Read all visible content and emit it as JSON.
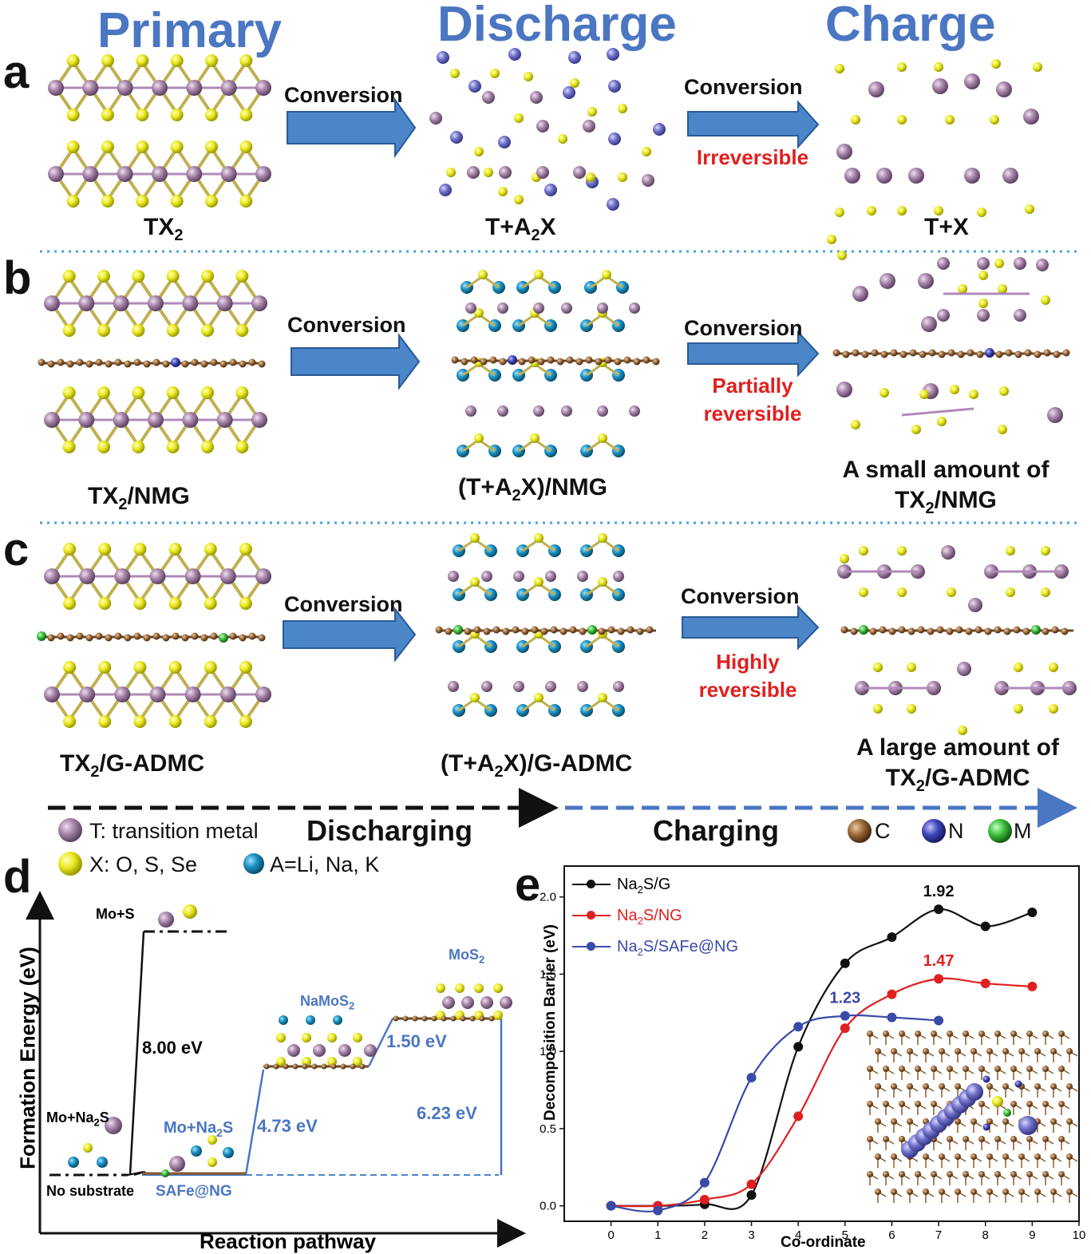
{
  "headers": {
    "primary": "Primary",
    "discharge": "Discharge",
    "charge": "Charge"
  },
  "panels": {
    "a": {
      "letter": "a",
      "conversion1": "Conversion",
      "conversion2": "Conversion",
      "reversibility": "Irreversible",
      "cap_primary": "TX",
      "cap_primary_sub": "2",
      "cap_discharge_a": "T+A",
      "cap_discharge_sub": "2",
      "cap_discharge_b": "X",
      "cap_charge": "T+X"
    },
    "b": {
      "letter": "b",
      "conversion1": "Conversion",
      "conversion2": "Conversion",
      "reversibility_1": "Partially",
      "reversibility_2": "reversible",
      "cap_primary_a": "TX",
      "cap_primary_sub": "2",
      "cap_primary_b": "/NMG",
      "cap_discharge_a": "(T+A",
      "cap_discharge_sub": "2",
      "cap_discharge_b": "X)/NMG",
      "cap_charge_1": "A small amount of",
      "cap_charge_2a": "TX",
      "cap_charge_2sub": "2",
      "cap_charge_2b": "/NMG"
    },
    "c": {
      "letter": "c",
      "conversion1": "Conversion",
      "conversion2": "Conversion",
      "reversibility_1": "Highly",
      "reversibility_2": "reversible",
      "cap_primary_a": "TX",
      "cap_primary_sub": "2",
      "cap_primary_b": "/G-ADMC",
      "cap_discharge_a": "(T+A",
      "cap_discharge_sub": "2",
      "cap_discharge_b": "X)/G-ADMC",
      "cap_charge_1": "A large amount of",
      "cap_charge_2a": "TX",
      "cap_charge_2sub": "2",
      "cap_charge_2b": "/G-ADMC"
    }
  },
  "process": {
    "discharging": "Discharging",
    "charging": "Charging"
  },
  "legend": {
    "t": "T: transition metal",
    "x": "X: O, S, Se",
    "a": "A=Li, Na, K",
    "c": "C",
    "n": "N",
    "m": "M"
  },
  "colors": {
    "T": "#9a7aa0",
    "X": "#e8e020",
    "A": "#1a90c0",
    "C": "#8a5a2a",
    "N": "#4048b8",
    "M": "#40c040",
    "blue": "#4a76c2",
    "red": "#e02020"
  },
  "panel_d": {
    "letter": "d",
    "ylabel": "Formation Energy (eV)",
    "xlabel": "Reaction pathway",
    "label_mos_top": "Mo+S",
    "label_mona2s_left": "Mo+Na",
    "label_mona2s_left_sub": "2",
    "label_mona2s_left_end": "S",
    "label_nosub": "No substrate",
    "energy_8": "8.00 eV",
    "label_mona2s_right": "Mo+Na",
    "label_mona2s_right_sub": "2",
    "label_mona2s_right_end": "S",
    "label_safe": "SAFe@NG",
    "energy_473": "4.73 eV",
    "label_namos2": "NaMoS",
    "label_namos2_sub": "2",
    "energy_150": "1.50 eV",
    "label_mos2": "MoS",
    "label_mos2_sub": "2",
    "energy_623": "6.23 eV"
  },
  "chart_data": {
    "type": "line",
    "letter": "e",
    "xlabel": "Co-ordinate",
    "ylabel": "Decomposition Barrier (eV)",
    "xlim": [
      -1,
      10
    ],
    "ylim": [
      -0.1,
      2.2
    ],
    "xticks": [
      "0",
      "1",
      "2",
      "3",
      "4",
      "5",
      "6",
      "7",
      "8",
      "9",
      "10"
    ],
    "yticks": [
      "0.0",
      "0.5",
      "1.0",
      "1.5",
      "2.0"
    ],
    "series": [
      {
        "name_a": "Na",
        "name_sub": "2",
        "name_b": "S/G",
        "color": "#111111",
        "x": [
          0,
          1,
          2,
          3,
          4,
          5,
          6,
          7,
          8,
          9
        ],
        "y": [
          0.0,
          0.0,
          0.01,
          0.07,
          1.03,
          1.57,
          1.74,
          1.92,
          1.81,
          1.9
        ]
      },
      {
        "name_a": "Na",
        "name_sub": "2",
        "name_b": "S/NG",
        "color": "#e02020",
        "x": [
          0,
          1,
          2,
          3,
          4,
          5,
          6,
          7,
          8,
          9
        ],
        "y": [
          0.0,
          0.0,
          0.04,
          0.14,
          0.58,
          1.15,
          1.37,
          1.47,
          1.44,
          1.42
        ]
      },
      {
        "name_a": "Na",
        "name_sub": "2",
        "name_b": "S/SAFe@NG",
        "color": "#3a4aa8",
        "x": [
          0,
          1,
          2,
          3,
          4,
          5,
          6,
          7
        ],
        "y": [
          0.0,
          -0.03,
          0.15,
          0.83,
          1.16,
          1.23,
          1.22,
          1.2
        ]
      }
    ],
    "annotations": [
      "1.92",
      "1.47",
      "1.23"
    ],
    "legend": "top-left"
  }
}
